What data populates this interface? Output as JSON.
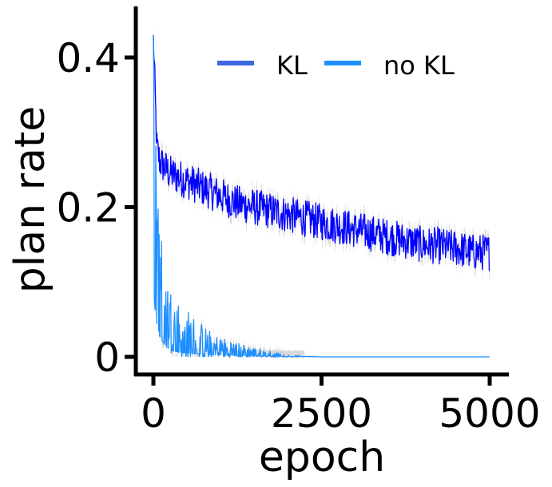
{
  "chart_data": {
    "type": "line",
    "xlabel": "epoch",
    "ylabel": "plan rate",
    "xlim": [
      0,
      5000
    ],
    "ylim": [
      0,
      0.45
    ],
    "xticks": [
      0,
      2500,
      5000
    ],
    "xtick_labels": [
      "0",
      "2500",
      "5000"
    ],
    "yticks": [
      0,
      0.2,
      0.4
    ],
    "ytick_labels": [
      "0",
      "0.2",
      "0.4"
    ],
    "grid": false,
    "legend_position": "top-right",
    "shaded_error_band": true,
    "series": [
      {
        "name": "KL",
        "color": "#0000ff",
        "legend_color": "#4169e1",
        "x": [
          0,
          50,
          100,
          250,
          500,
          750,
          1000,
          1250,
          1500,
          1750,
          2000,
          2250,
          2500,
          2750,
          3000,
          3250,
          3500,
          3750,
          4000,
          4250,
          4500,
          4750,
          5000
        ],
        "y": [
          0.43,
          0.28,
          0.26,
          0.245,
          0.235,
          0.225,
          0.215,
          0.205,
          0.2,
          0.195,
          0.19,
          0.185,
          0.18,
          0.175,
          0.17,
          0.165,
          0.16,
          0.155,
          0.15,
          0.148,
          0.145,
          0.14,
          0.14
        ],
        "noise": 0.025
      },
      {
        "name": "no KL",
        "color": "#1e90ff",
        "legend_color": "#1e90ff",
        "x": [
          0,
          50,
          100,
          200,
          300,
          400,
          500,
          700,
          900,
          1200,
          1500,
          1800,
          2000,
          2500,
          3000,
          3500,
          4000,
          4500,
          5000
        ],
        "y": [
          0.43,
          0.22,
          0.13,
          0.06,
          0.04,
          0.03,
          0.025,
          0.018,
          0.012,
          0.008,
          0.005,
          0.003,
          0.001,
          0,
          0,
          0,
          0,
          0,
          0
        ],
        "noise": 0.015
      }
    ]
  }
}
